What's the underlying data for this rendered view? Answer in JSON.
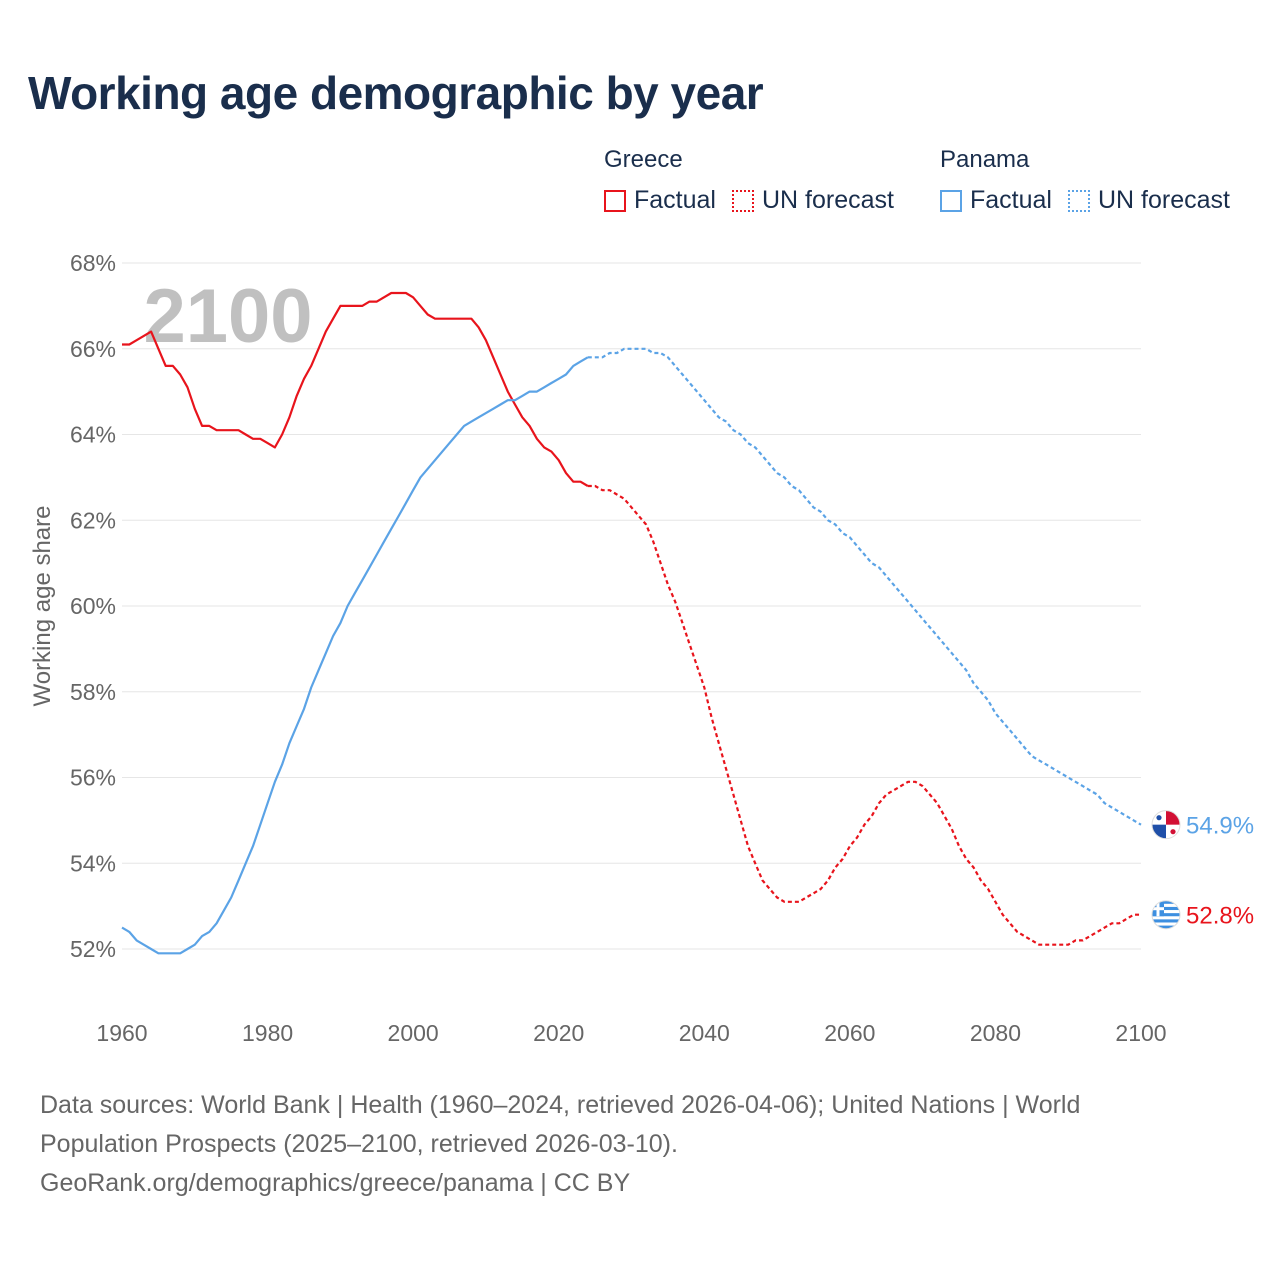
{
  "title": "Working age demographic by year",
  "legend": {
    "groups": [
      {
        "name": "Greece",
        "factual_label": "Factual",
        "forecast_label": "UN forecast",
        "color": "#e8141c"
      },
      {
        "name": "Panama",
        "factual_label": "Factual",
        "forecast_label": "UN forecast",
        "color": "#5ba3e6"
      }
    ]
  },
  "footer": {
    "line1": "Data sources: World Bank | Health (1960–2024, retrieved 2026-04-06); United Nations | World",
    "line2": "Population Prospects (2025–2100, retrieved 2026-03-10).",
    "line3": "GeoRank.org/demographics/greece/panama | CC BY"
  },
  "chart_data": {
    "type": "line",
    "title": "Working age demographic by year",
    "ylabel": "Working age share",
    "xlabel": "",
    "year_watermark": "2100",
    "xlim": [
      1960,
      2100
    ],
    "ylim": [
      51,
      68
    ],
    "x_ticks": [
      1960,
      1980,
      2000,
      2020,
      2040,
      2060,
      2080,
      2100
    ],
    "y_ticks": [
      52,
      54,
      56,
      58,
      60,
      62,
      64,
      66,
      68
    ],
    "y_tick_labels": [
      "52%",
      "54%",
      "56%",
      "58%",
      "60%",
      "62%",
      "64%",
      "66%",
      "68%"
    ],
    "grid": true,
    "factual_end_year": 2024,
    "series": [
      {
        "name": "Greece",
        "color": "#e8141c",
        "end_label": "52.8%",
        "flag": "greece-flag",
        "points": [
          [
            1960,
            66.1
          ],
          [
            1961,
            66.1
          ],
          [
            1962,
            66.2
          ],
          [
            1963,
            66.3
          ],
          [
            1964,
            66.4
          ],
          [
            1965,
            66.0
          ],
          [
            1966,
            65.6
          ],
          [
            1967,
            65.6
          ],
          [
            1968,
            65.4
          ],
          [
            1969,
            65.1
          ],
          [
            1970,
            64.6
          ],
          [
            1971,
            64.2
          ],
          [
            1972,
            64.2
          ],
          [
            1973,
            64.1
          ],
          [
            1974,
            64.1
          ],
          [
            1975,
            64.1
          ],
          [
            1976,
            64.1
          ],
          [
            1977,
            64.0
          ],
          [
            1978,
            63.9
          ],
          [
            1979,
            63.9
          ],
          [
            1980,
            63.8
          ],
          [
            1981,
            63.7
          ],
          [
            1982,
            64.0
          ],
          [
            1983,
            64.4
          ],
          [
            1984,
            64.9
          ],
          [
            1985,
            65.3
          ],
          [
            1986,
            65.6
          ],
          [
            1987,
            66.0
          ],
          [
            1988,
            66.4
          ],
          [
            1989,
            66.7
          ],
          [
            1990,
            67.0
          ],
          [
            1991,
            67.0
          ],
          [
            1992,
            67.0
          ],
          [
            1993,
            67.0
          ],
          [
            1994,
            67.1
          ],
          [
            1995,
            67.1
          ],
          [
            1996,
            67.2
          ],
          [
            1997,
            67.3
          ],
          [
            1998,
            67.3
          ],
          [
            1999,
            67.3
          ],
          [
            2000,
            67.2
          ],
          [
            2001,
            67.0
          ],
          [
            2002,
            66.8
          ],
          [
            2003,
            66.7
          ],
          [
            2004,
            66.7
          ],
          [
            2005,
            66.7
          ],
          [
            2006,
            66.7
          ],
          [
            2007,
            66.7
          ],
          [
            2008,
            66.7
          ],
          [
            2009,
            66.5
          ],
          [
            2010,
            66.2
          ],
          [
            2011,
            65.8
          ],
          [
            2012,
            65.4
          ],
          [
            2013,
            65.0
          ],
          [
            2014,
            64.7
          ],
          [
            2015,
            64.4
          ],
          [
            2016,
            64.2
          ],
          [
            2017,
            63.9
          ],
          [
            2018,
            63.7
          ],
          [
            2019,
            63.6
          ],
          [
            2020,
            63.4
          ],
          [
            2021,
            63.1
          ],
          [
            2022,
            62.9
          ],
          [
            2023,
            62.9
          ],
          [
            2024,
            62.8
          ],
          [
            2025,
            62.8
          ],
          [
            2026,
            62.7
          ],
          [
            2027,
            62.7
          ],
          [
            2028,
            62.6
          ],
          [
            2029,
            62.5
          ],
          [
            2030,
            62.3
          ],
          [
            2031,
            62.1
          ],
          [
            2032,
            61.9
          ],
          [
            2033,
            61.5
          ],
          [
            2034,
            61.0
          ],
          [
            2035,
            60.5
          ],
          [
            2036,
            60.1
          ],
          [
            2037,
            59.6
          ],
          [
            2038,
            59.1
          ],
          [
            2039,
            58.6
          ],
          [
            2040,
            58.1
          ],
          [
            2041,
            57.4
          ],
          [
            2042,
            56.8
          ],
          [
            2043,
            56.2
          ],
          [
            2044,
            55.6
          ],
          [
            2045,
            55.0
          ],
          [
            2046,
            54.4
          ],
          [
            2047,
            54.0
          ],
          [
            2048,
            53.6
          ],
          [
            2049,
            53.4
          ],
          [
            2050,
            53.2
          ],
          [
            2051,
            53.1
          ],
          [
            2052,
            53.1
          ],
          [
            2053,
            53.1
          ],
          [
            2054,
            53.2
          ],
          [
            2055,
            53.3
          ],
          [
            2056,
            53.4
          ],
          [
            2057,
            53.6
          ],
          [
            2058,
            53.9
          ],
          [
            2059,
            54.1
          ],
          [
            2060,
            54.4
          ],
          [
            2061,
            54.6
          ],
          [
            2062,
            54.9
          ],
          [
            2063,
            55.1
          ],
          [
            2064,
            55.4
          ],
          [
            2065,
            55.6
          ],
          [
            2066,
            55.7
          ],
          [
            2067,
            55.8
          ],
          [
            2068,
            55.9
          ],
          [
            2069,
            55.9
          ],
          [
            2070,
            55.8
          ],
          [
            2071,
            55.6
          ],
          [
            2072,
            55.4
          ],
          [
            2073,
            55.1
          ],
          [
            2074,
            54.8
          ],
          [
            2075,
            54.4
          ],
          [
            2076,
            54.1
          ],
          [
            2077,
            53.9
          ],
          [
            2078,
            53.6
          ],
          [
            2079,
            53.4
          ],
          [
            2080,
            53.1
          ],
          [
            2081,
            52.8
          ],
          [
            2082,
            52.6
          ],
          [
            2083,
            52.4
          ],
          [
            2084,
            52.3
          ],
          [
            2085,
            52.2
          ],
          [
            2086,
            52.1
          ],
          [
            2087,
            52.1
          ],
          [
            2088,
            52.1
          ],
          [
            2089,
            52.1
          ],
          [
            2090,
            52.1
          ],
          [
            2091,
            52.2
          ],
          [
            2092,
            52.2
          ],
          [
            2093,
            52.3
          ],
          [
            2094,
            52.4
          ],
          [
            2095,
            52.5
          ],
          [
            2096,
            52.6
          ],
          [
            2097,
            52.6
          ],
          [
            2098,
            52.7
          ],
          [
            2099,
            52.8
          ],
          [
            2100,
            52.8
          ]
        ]
      },
      {
        "name": "Panama",
        "color": "#5ba3e6",
        "end_label": "54.9%",
        "flag": "panama-flag",
        "points": [
          [
            1960,
            52.5
          ],
          [
            1961,
            52.4
          ],
          [
            1962,
            52.2
          ],
          [
            1963,
            52.1
          ],
          [
            1964,
            52.0
          ],
          [
            1965,
            51.9
          ],
          [
            1966,
            51.9
          ],
          [
            1967,
            51.9
          ],
          [
            1968,
            51.9
          ],
          [
            1969,
            52.0
          ],
          [
            1970,
            52.1
          ],
          [
            1971,
            52.3
          ],
          [
            1972,
            52.4
          ],
          [
            1973,
            52.6
          ],
          [
            1974,
            52.9
          ],
          [
            1975,
            53.2
          ],
          [
            1976,
            53.6
          ],
          [
            1977,
            54.0
          ],
          [
            1978,
            54.4
          ],
          [
            1979,
            54.9
          ],
          [
            1980,
            55.4
          ],
          [
            1981,
            55.9
          ],
          [
            1982,
            56.3
          ],
          [
            1983,
            56.8
          ],
          [
            1984,
            57.2
          ],
          [
            1985,
            57.6
          ],
          [
            1986,
            58.1
          ],
          [
            1987,
            58.5
          ],
          [
            1988,
            58.9
          ],
          [
            1989,
            59.3
          ],
          [
            1990,
            59.6
          ],
          [
            1991,
            60.0
          ],
          [
            1992,
            60.3
          ],
          [
            1993,
            60.6
          ],
          [
            1994,
            60.9
          ],
          [
            1995,
            61.2
          ],
          [
            1996,
            61.5
          ],
          [
            1997,
            61.8
          ],
          [
            1998,
            62.1
          ],
          [
            1999,
            62.4
          ],
          [
            2000,
            62.7
          ],
          [
            2001,
            63.0
          ],
          [
            2002,
            63.2
          ],
          [
            2003,
            63.4
          ],
          [
            2004,
            63.6
          ],
          [
            2005,
            63.8
          ],
          [
            2006,
            64.0
          ],
          [
            2007,
            64.2
          ],
          [
            2008,
            64.3
          ],
          [
            2009,
            64.4
          ],
          [
            2010,
            64.5
          ],
          [
            2011,
            64.6
          ],
          [
            2012,
            64.7
          ],
          [
            2013,
            64.8
          ],
          [
            2014,
            64.8
          ],
          [
            2015,
            64.9
          ],
          [
            2016,
            65.0
          ],
          [
            2017,
            65.0
          ],
          [
            2018,
            65.1
          ],
          [
            2019,
            65.2
          ],
          [
            2020,
            65.3
          ],
          [
            2021,
            65.4
          ],
          [
            2022,
            65.6
          ],
          [
            2023,
            65.7
          ],
          [
            2024,
            65.8
          ],
          [
            2025,
            65.8
          ],
          [
            2026,
            65.8
          ],
          [
            2027,
            65.9
          ],
          [
            2028,
            65.9
          ],
          [
            2029,
            66.0
          ],
          [
            2030,
            66.0
          ],
          [
            2031,
            66.0
          ],
          [
            2032,
            66.0
          ],
          [
            2033,
            65.9
          ],
          [
            2034,
            65.9
          ],
          [
            2035,
            65.8
          ],
          [
            2036,
            65.6
          ],
          [
            2037,
            65.4
          ],
          [
            2038,
            65.2
          ],
          [
            2039,
            65.0
          ],
          [
            2040,
            64.8
          ],
          [
            2041,
            64.6
          ],
          [
            2042,
            64.4
          ],
          [
            2043,
            64.3
          ],
          [
            2044,
            64.1
          ],
          [
            2045,
            64.0
          ],
          [
            2046,
            63.8
          ],
          [
            2047,
            63.7
          ],
          [
            2048,
            63.5
          ],
          [
            2049,
            63.3
          ],
          [
            2050,
            63.1
          ],
          [
            2051,
            63.0
          ],
          [
            2052,
            62.8
          ],
          [
            2053,
            62.7
          ],
          [
            2054,
            62.5
          ],
          [
            2055,
            62.3
          ],
          [
            2056,
            62.2
          ],
          [
            2057,
            62.0
          ],
          [
            2058,
            61.9
          ],
          [
            2059,
            61.7
          ],
          [
            2060,
            61.6
          ],
          [
            2061,
            61.4
          ],
          [
            2062,
            61.2
          ],
          [
            2063,
            61.0
          ],
          [
            2064,
            60.9
          ],
          [
            2065,
            60.7
          ],
          [
            2066,
            60.5
          ],
          [
            2067,
            60.3
          ],
          [
            2068,
            60.1
          ],
          [
            2069,
            59.9
          ],
          [
            2070,
            59.7
          ],
          [
            2071,
            59.5
          ],
          [
            2072,
            59.3
          ],
          [
            2073,
            59.1
          ],
          [
            2074,
            58.9
          ],
          [
            2075,
            58.7
          ],
          [
            2076,
            58.5
          ],
          [
            2077,
            58.2
          ],
          [
            2078,
            58.0
          ],
          [
            2079,
            57.8
          ],
          [
            2080,
            57.5
          ],
          [
            2081,
            57.3
          ],
          [
            2082,
            57.1
          ],
          [
            2083,
            56.9
          ],
          [
            2084,
            56.7
          ],
          [
            2085,
            56.5
          ],
          [
            2086,
            56.4
          ],
          [
            2087,
            56.3
          ],
          [
            2088,
            56.2
          ],
          [
            2089,
            56.1
          ],
          [
            2090,
            56.0
          ],
          [
            2091,
            55.9
          ],
          [
            2092,
            55.8
          ],
          [
            2093,
            55.7
          ],
          [
            2094,
            55.6
          ],
          [
            2095,
            55.4
          ],
          [
            2096,
            55.3
          ],
          [
            2097,
            55.2
          ],
          [
            2098,
            55.1
          ],
          [
            2099,
            55.0
          ],
          [
            2100,
            54.9
          ]
        ]
      }
    ]
  }
}
